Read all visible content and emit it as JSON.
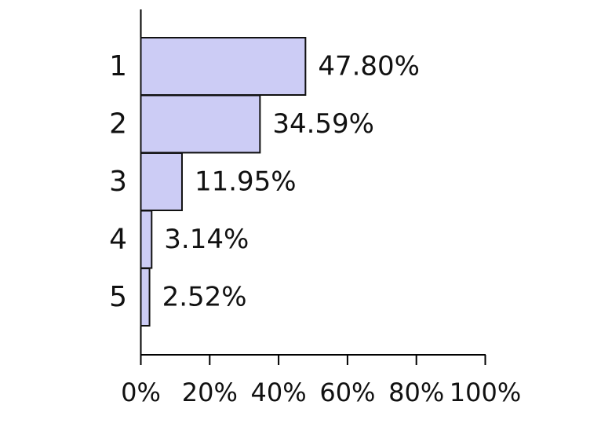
{
  "chart_data": {
    "type": "bar",
    "orientation": "horizontal",
    "title": "",
    "xlabel": "",
    "ylabel": "",
    "categories": [
      "1",
      "2",
      "3",
      "4",
      "5"
    ],
    "values": [
      47.8,
      34.59,
      11.95,
      3.14,
      2.52
    ],
    "value_labels": [
      "47.80%",
      "34.59%",
      "11.95%",
      "3.14%",
      "2.52%"
    ],
    "xlim": [
      0,
      100
    ],
    "x_ticks": [
      0,
      20,
      40,
      60,
      80,
      100
    ],
    "x_tick_labels": [
      "0%",
      "20%",
      "40%",
      "60%",
      "80%",
      "100%"
    ],
    "grid": false,
    "legend": "none",
    "colors": {
      "bar_fill": "#ccccf5",
      "bar_stroke": "#111111",
      "text": "#111111",
      "axis": "#000000"
    }
  }
}
